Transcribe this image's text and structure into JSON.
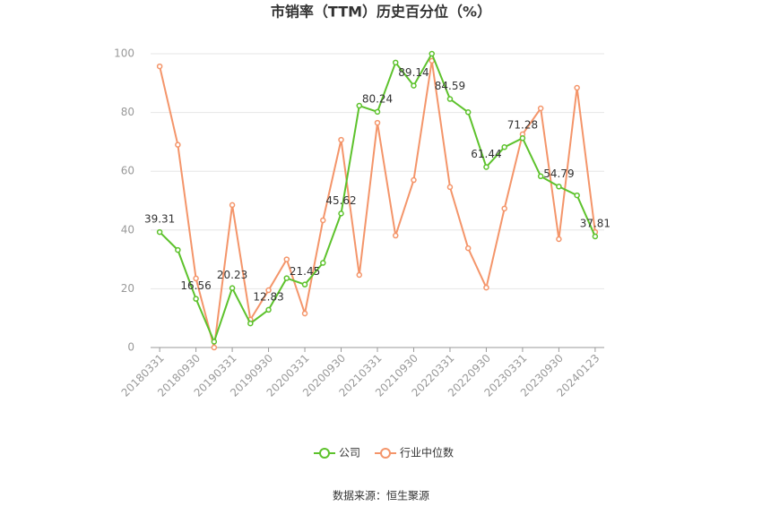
{
  "chart_data": {
    "type": "line",
    "title": "市销率（TTM）历史百分位（%）",
    "source": "数据来源：恒生聚源",
    "categories": [
      "20180331",
      null,
      "20180930",
      null,
      "20190331",
      null,
      "20190930",
      null,
      "20200331",
      null,
      "20200930",
      null,
      "20210331",
      null,
      "20210930",
      null,
      "20220331",
      null,
      "20220930",
      null,
      "20230331",
      null,
      "20230930",
      null,
      "20240123"
    ],
    "series": [
      {
        "name": "公司",
        "color": "#5dc22c",
        "values": [
          39.31,
          33.2,
          16.56,
          2.0,
          20.23,
          8.2,
          12.83,
          23.6,
          21.45,
          28.8,
          45.62,
          82.3,
          80.24,
          97.0,
          89.14,
          100,
          84.59,
          80.1,
          61.44,
          68.2,
          71.28,
          58.3,
          54.79,
          51.8,
          37.81
        ],
        "value_labels": [
          "39.31",
          null,
          "16.56",
          null,
          "20.23",
          null,
          "12.83",
          null,
          "21.45",
          null,
          "45.62",
          null,
          "80.24",
          null,
          "89.14",
          null,
          "84.59",
          null,
          "61.44",
          null,
          "71.28",
          null,
          "54.79",
          null,
          "37.81"
        ]
      },
      {
        "name": "行业中位数",
        "color": "#f4956a",
        "values": [
          95.7,
          69.0,
          23.5,
          0,
          48.5,
          9.5,
          19.5,
          30.0,
          11.6,
          43.3,
          70.7,
          24.7,
          76.5,
          38.1,
          57.0,
          97.6,
          54.6,
          33.8,
          20.4,
          47.3,
          72.6,
          81.4,
          36.9,
          88.4,
          39.3
        ]
      }
    ],
    "ylim": [
      0,
      100
    ],
    "yticks": [
      0,
      20,
      40,
      60,
      80,
      100
    ],
    "grid": true,
    "legend": "bottom"
  }
}
